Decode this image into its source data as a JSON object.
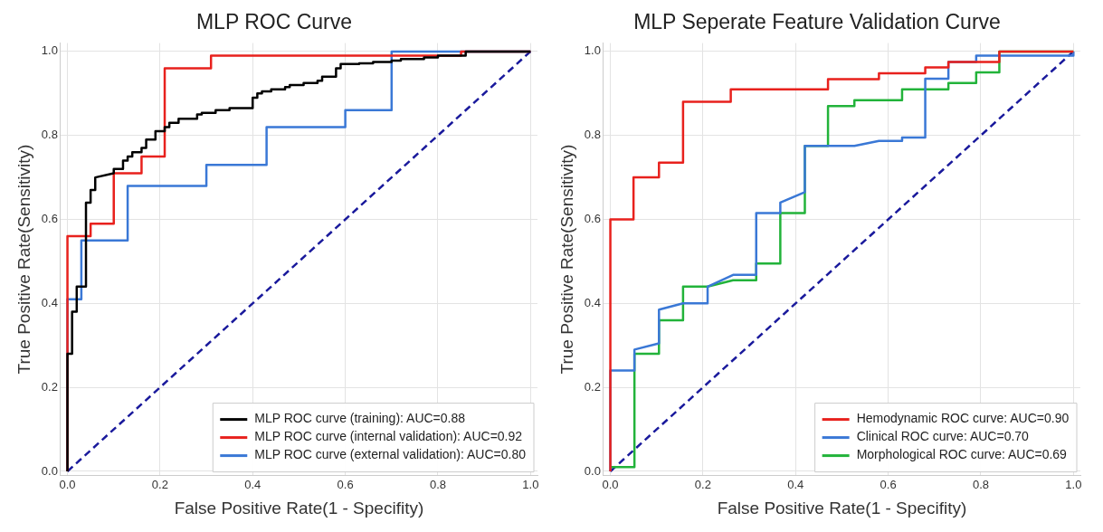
{
  "chart_data": [
    {
      "type": "line",
      "title": "MLP ROC Curve",
      "xlabel": "False Positive Rate(1 - Specifity)",
      "ylabel": "True Positive Rate(Sensitivity)",
      "xlim": [
        -0.015,
        1.015
      ],
      "ylim": [
        -0.01,
        1.02
      ],
      "xticks": [
        {
          "value": 0,
          "label": "0.0"
        },
        {
          "value": 0.2,
          "label": "0.2"
        },
        {
          "value": 0.4,
          "label": "0.4"
        },
        {
          "value": 0.6,
          "label": "0.6"
        },
        {
          "value": 0.8,
          "label": "0.8"
        },
        {
          "value": 1,
          "label": "1.0"
        }
      ],
      "yticks": [
        {
          "value": 0,
          "label": "0.0"
        },
        {
          "value": 0.2,
          "label": "0.2"
        },
        {
          "value": 0.4,
          "label": "0.4"
        },
        {
          "value": 0.6,
          "label": "0.6"
        },
        {
          "value": 0.8,
          "label": "0.8"
        },
        {
          "value": 1,
          "label": "1.0"
        }
      ],
      "grid": true,
      "legend": "bottom right",
      "marker": "none",
      "series": [
        {
          "name": "MLP ROC curve (training): AUC=0.88",
          "color": "#000000",
          "x": [
            0,
            0,
            0.01,
            0.01,
            0.02,
            0.02,
            0.04,
            0.04,
            0.05,
            0.05,
            0.06,
            0.06,
            0.1,
            0.1,
            0.12,
            0.12,
            0.13,
            0.13,
            0.14,
            0.14,
            0.16,
            0.16,
            0.17,
            0.17,
            0.19,
            0.19,
            0.21,
            0.21,
            0.22,
            0.22,
            0.24,
            0.24,
            0.28,
            0.28,
            0.29,
            0.29,
            0.32,
            0.32,
            0.35,
            0.35,
            0.4,
            0.4,
            0.41,
            0.41,
            0.42,
            0.42,
            0.44,
            0.44,
            0.47,
            0.47,
            0.48,
            0.48,
            0.51,
            0.51,
            0.54,
            0.54,
            0.55,
            0.55,
            0.58,
            0.58,
            0.59,
            0.59,
            0.63,
            0.63,
            0.66,
            0.66,
            0.7,
            0.7,
            0.72,
            0.72,
            0.77,
            0.77,
            0.8,
            0.8,
            0.86,
            0.86,
            1
          ],
          "values": [
            0,
            0.28,
            0.28,
            0.38,
            0.38,
            0.44,
            0.44,
            0.64,
            0.64,
            0.67,
            0.67,
            0.7,
            0.71,
            0.72,
            0.72,
            0.74,
            0.74,
            0.75,
            0.75,
            0.76,
            0.76,
            0.77,
            0.77,
            0.79,
            0.79,
            0.81,
            0.81,
            0.82,
            0.82,
            0.83,
            0.83,
            0.84,
            0.84,
            0.85,
            0.85,
            0.854,
            0.854,
            0.86,
            0.86,
            0.865,
            0.865,
            0.89,
            0.89,
            0.9,
            0.9,
            0.905,
            0.905,
            0.91,
            0.91,
            0.915,
            0.915,
            0.92,
            0.92,
            0.925,
            0.925,
            0.93,
            0.93,
            0.94,
            0.94,
            0.96,
            0.96,
            0.97,
            0.97,
            0.972,
            0.972,
            0.975,
            0.975,
            0.978,
            0.978,
            0.982,
            0.982,
            0.986,
            0.986,
            0.99,
            0.99,
            1,
            1
          ]
        },
        {
          "name": "MLP ROC curve (internal validation): AUC=0.92",
          "color": "#e8211d",
          "x": [
            0,
            0,
            0.05,
            0.05,
            0.1,
            0.1,
            0.16,
            0.16,
            0.21,
            0.21,
            0.31,
            0.31,
            0.85,
            0.85,
            1
          ],
          "values": [
            0,
            0.56,
            0.56,
            0.59,
            0.59,
            0.71,
            0.71,
            0.75,
            0.75,
            0.96,
            0.96,
            0.99,
            0.99,
            1,
            1
          ]
        },
        {
          "name": "MLP ROC curve (external validation): AUC=0.80",
          "color": "#3a78d6",
          "x": [
            0,
            0,
            0.03,
            0.03,
            0.13,
            0.13,
            0.3,
            0.3,
            0.43,
            0.43,
            0.6,
            0.6,
            0.7,
            0.7,
            1
          ],
          "values": [
            0,
            0.41,
            0.41,
            0.55,
            0.55,
            0.68,
            0.68,
            0.73,
            0.73,
            0.82,
            0.82,
            0.86,
            0.86,
            1,
            1
          ]
        },
        {
          "color": "#1a1a9c",
          "line_style": "dashed",
          "x": [
            0,
            1
          ],
          "values": [
            0,
            1
          ]
        }
      ]
    },
    {
      "type": "line",
      "title": "MLP Seperate Feature Validation Curve",
      "xlabel": "False Positive Rate(1 - Specifity)",
      "ylabel": "True Positive Rate(Sensitivity)",
      "xlim": [
        -0.015,
        1.015
      ],
      "ylim": [
        -0.01,
        1.02
      ],
      "xticks": [
        {
          "value": 0,
          "label": "0.0"
        },
        {
          "value": 0.2,
          "label": "0.2"
        },
        {
          "value": 0.4,
          "label": "0.4"
        },
        {
          "value": 0.6,
          "label": "0.6"
        },
        {
          "value": 0.8,
          "label": "0.8"
        },
        {
          "value": 1,
          "label": "1.0"
        }
      ],
      "yticks": [
        {
          "value": 0,
          "label": "0.0"
        },
        {
          "value": 0.2,
          "label": "0.2"
        },
        {
          "value": 0.4,
          "label": "0.4"
        },
        {
          "value": 0.6,
          "label": "0.6"
        },
        {
          "value": 0.8,
          "label": "0.8"
        },
        {
          "value": 1,
          "label": "1.0"
        }
      ],
      "grid": true,
      "legend": "bottom right",
      "marker": "none",
      "series": [
        {
          "name": "Hemodynamic ROC curve: AUC=0.90",
          "color": "#e8211d",
          "x": [
            0,
            0,
            0.05,
            0.05,
            0.105,
            0.105,
            0.157,
            0.157,
            0.26,
            0.26,
            0.47,
            0.47,
            0.58,
            0.58,
            0.68,
            0.68,
            0.73,
            0.73,
            0.84,
            0.84,
            1
          ],
          "values": [
            0,
            0.6,
            0.6,
            0.7,
            0.7,
            0.735,
            0.735,
            0.88,
            0.88,
            0.91,
            0.91,
            0.934,
            0.934,
            0.948,
            0.948,
            0.962,
            0.962,
            0.975,
            0.975,
            1,
            1
          ]
        },
        {
          "name": "Clinical ROC curve: AUC=0.70",
          "color": "#3a78d6",
          "x": [
            0,
            0,
            0.052,
            0.052,
            0.105,
            0.105,
            0.157,
            0.21,
            0.21,
            0.265,
            0.315,
            0.315,
            0.367,
            0.367,
            0.42,
            0.42,
            0.527,
            0.58,
            0.63,
            0.63,
            0.68,
            0.68,
            0.73,
            0.73,
            0.79,
            0.79,
            1,
            1
          ],
          "values": [
            0,
            0.24,
            0.24,
            0.29,
            0.305,
            0.385,
            0.4,
            0.4,
            0.44,
            0.468,
            0.468,
            0.615,
            0.615,
            0.64,
            0.665,
            0.775,
            0.775,
            0.787,
            0.787,
            0.795,
            0.795,
            0.935,
            0.935,
            0.975,
            0.975,
            0.99,
            0.99,
            1
          ]
        },
        {
          "name": "Morphological ROC curve: AUC=0.69",
          "color": "#22b33a",
          "x": [
            0,
            0.052,
            0.052,
            0.105,
            0.105,
            0.157,
            0.157,
            0.21,
            0.265,
            0.315,
            0.315,
            0.367,
            0.367,
            0.42,
            0.42,
            0.47,
            0.47,
            0.527,
            0.527,
            0.63,
            0.63,
            0.73,
            0.73,
            0.79,
            0.79,
            0.84,
            0.84,
            1
          ],
          "values": [
            0.01,
            0.01,
            0.28,
            0.28,
            0.36,
            0.36,
            0.44,
            0.44,
            0.455,
            0.455,
            0.495,
            0.495,
            0.615,
            0.615,
            0.775,
            0.775,
            0.87,
            0.87,
            0.884,
            0.884,
            0.91,
            0.91,
            0.925,
            0.925,
            0.95,
            0.95,
            1,
            1
          ]
        },
        {
          "color": "#1a1a9c",
          "line_style": "dashed",
          "x": [
            0,
            1
          ],
          "values": [
            0,
            1
          ]
        }
      ]
    }
  ]
}
